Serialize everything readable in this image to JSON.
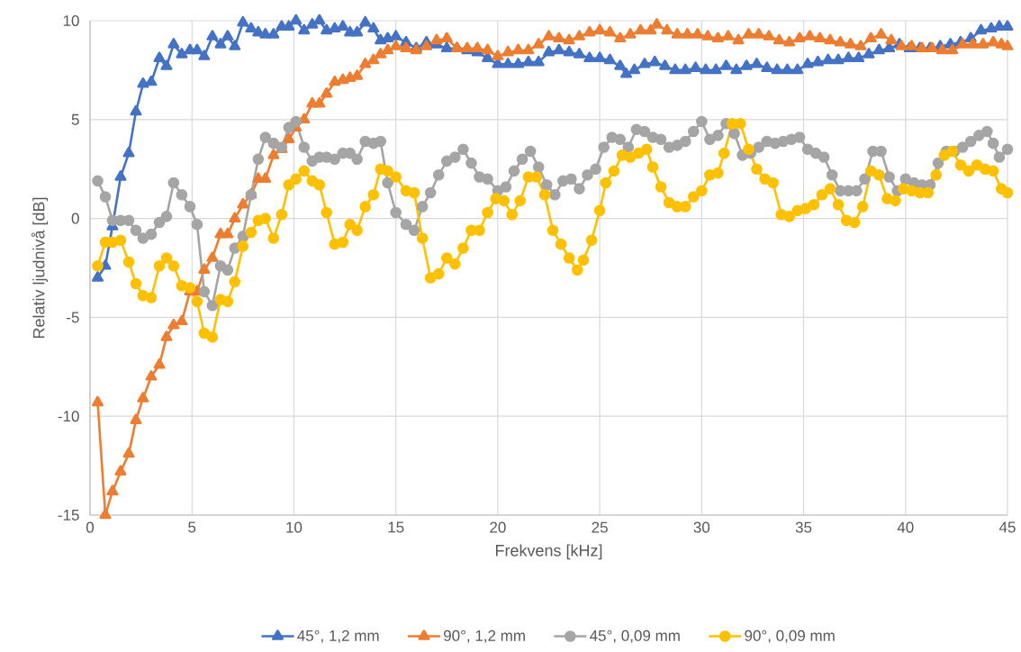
{
  "chart_data": {
    "type": "line",
    "xlabel": "Frekvens [kHz]",
    "ylabel": "Relativ ljudnivå [dB]",
    "xlim": [
      0,
      45
    ],
    "ylim": [
      -15,
      10
    ],
    "xticks": [
      0,
      5,
      10,
      15,
      20,
      25,
      30,
      35,
      40,
      45
    ],
    "yticks": [
      -15,
      -10,
      -5,
      0,
      5,
      10
    ],
    "grid": true,
    "legend": "bottom",
    "series": [
      {
        "name": "45°, 1,2 mm",
        "color": "#4472c4",
        "marker": "triangle",
        "x": [
          0.375,
          0.75,
          1.1,
          1.5,
          1.9,
          2.25,
          2.6,
          3.0,
          3.4,
          3.75,
          4.1,
          4.5,
          4.9,
          5.25,
          5.6,
          6.0,
          6.4,
          6.75,
          7.1,
          7.5,
          7.9,
          8.25,
          8.6,
          9.0,
          9.4,
          9.75,
          10.1,
          10.5,
          10.9,
          11.25,
          11.6,
          12,
          12.4,
          12.75,
          13.1,
          13.5,
          13.9,
          14.25,
          14.6,
          15,
          15.5,
          16,
          16.5,
          17,
          17.5,
          18,
          18.5,
          19,
          19.5,
          20,
          20.5,
          21,
          21.5,
          22,
          22.5,
          23,
          23.5,
          24,
          24.5,
          25,
          25.5,
          26,
          26.3,
          26.7,
          27.2,
          27.7,
          28.2,
          28.7,
          29.2,
          29.7,
          30.2,
          30.7,
          31.2,
          31.7,
          32.2,
          32.7,
          33.2,
          33.7,
          34.2,
          34.7,
          35.2,
          35.7,
          36.2,
          36.7,
          37.2,
          37.7,
          38.2,
          38.7,
          39.2,
          39.7,
          40.2,
          40.7,
          41.2,
          41.7,
          42.2,
          42.7,
          43.2,
          43.7,
          44.2,
          44.6,
          45
        ],
        "values": [
          -3.0,
          -2.4,
          -0.4,
          2.1,
          3.3,
          5.4,
          6.8,
          6.9,
          8.1,
          7.7,
          8.8,
          8.3,
          8.5,
          8.5,
          8.2,
          9.2,
          8.8,
          9.2,
          8.7,
          9.9,
          9.6,
          9.4,
          9.3,
          9.3,
          9.7,
          9.7,
          10.0,
          9.5,
          9.8,
          10.0,
          9.5,
          9.6,
          9.7,
          9.4,
          9.4,
          9.9,
          9.6,
          9.0,
          9.1,
          9.2,
          8.9,
          8.6,
          8.9,
          8.8,
          8.6,
          8.6,
          8.5,
          8.4,
          8.1,
          7.8,
          7.8,
          7.8,
          7.9,
          7.9,
          8.4,
          8.5,
          8.4,
          8.3,
          8.1,
          8.1,
          8.0,
          7.7,
          7.3,
          7.5,
          7.8,
          7.9,
          7.7,
          7.5,
          7.5,
          7.6,
          7.5,
          7.5,
          7.7,
          7.5,
          7.7,
          7.8,
          7.6,
          7.5,
          7.5,
          7.5,
          7.8,
          7.9,
          8.0,
          8.0,
          8.1,
          8.1,
          8.3,
          8.5,
          8.6,
          8.8,
          8.6,
          8.6,
          8.6,
          8.7,
          8.8,
          8.9,
          9.1,
          9.5,
          9.6,
          9.7,
          9.7
        ]
      },
      {
        "name": "90°, 1,2 mm",
        "color": "#ed7d31",
        "marker": "triangle",
        "x": [
          0.375,
          0.75,
          1.1,
          1.5,
          1.9,
          2.25,
          2.6,
          3.0,
          3.4,
          3.75,
          4.1,
          4.5,
          4.9,
          5.25,
          5.6,
          6.0,
          6.4,
          6.75,
          7.1,
          7.5,
          7.9,
          8.25,
          8.6,
          9.0,
          9.4,
          9.75,
          10.1,
          10.5,
          10.9,
          11.25,
          11.6,
          12,
          12.4,
          12.75,
          13.1,
          13.5,
          13.9,
          14.25,
          14.6,
          15,
          15.5,
          16,
          16.5,
          17,
          17.5,
          18,
          18.5,
          19,
          19.5,
          20,
          20.5,
          21,
          21.5,
          22,
          22.5,
          23,
          23.5,
          24,
          24.5,
          25,
          25.5,
          26,
          26.5,
          27,
          27.5,
          27.8,
          28.3,
          28.8,
          29.3,
          29.8,
          30.3,
          30.8,
          31.3,
          31.8,
          32.3,
          32.8,
          33.3,
          33.8,
          34.3,
          34.8,
          35.3,
          35.8,
          36.3,
          36.8,
          37.3,
          37.8,
          38.3,
          38.8,
          39.3,
          39.8,
          40.3,
          40.8,
          41.3,
          41.8,
          42.3,
          42.8,
          43.3,
          43.8,
          44.3,
          44.7,
          45
        ],
        "values": [
          -9.3,
          -15.0,
          -13.8,
          -12.8,
          -11.9,
          -10.2,
          -9.1,
          -8.0,
          -7.4,
          -6.0,
          -5.4,
          -5.2,
          -3.7,
          -3.7,
          -2.6,
          -2.0,
          -0.8,
          -0.8,
          0.0,
          0.7,
          1.2,
          2.0,
          2.0,
          3.2,
          3.5,
          4.0,
          4.6,
          5.0,
          5.8,
          5.8,
          6.3,
          6.9,
          7.0,
          7.1,
          7.2,
          7.8,
          8.0,
          8.3,
          8.5,
          8.7,
          8.6,
          8.5,
          8.7,
          9.0,
          9.1,
          8.6,
          8.6,
          8.6,
          8.5,
          8.2,
          8.4,
          8.5,
          8.5,
          8.8,
          9.2,
          9.1,
          9.0,
          9.2,
          9.4,
          9.5,
          9.4,
          9.1,
          9.3,
          9.5,
          9.5,
          9.8,
          9.5,
          9.3,
          9.3,
          9.3,
          9.2,
          9.1,
          9.2,
          9.0,
          9.3,
          9.3,
          9.2,
          9.0,
          8.9,
          9.1,
          9.2,
          9.1,
          9.0,
          8.9,
          8.8,
          8.7,
          9.1,
          9.3,
          9.0,
          8.7,
          8.7,
          8.6,
          8.6,
          8.5,
          8.5,
          8.8,
          8.8,
          8.8,
          8.9,
          8.8,
          8.7
        ]
      },
      {
        "name": "45°, 0,09 mm",
        "color": "#a5a5a5",
        "marker": "circle",
        "x": [
          0.375,
          0.75,
          1.1,
          1.5,
          1.9,
          2.25,
          2.6,
          3.0,
          3.4,
          3.75,
          4.1,
          4.5,
          4.9,
          5.25,
          5.6,
          6.0,
          6.4,
          6.75,
          7.1,
          7.5,
          7.9,
          8.25,
          8.6,
          9.0,
          9.4,
          9.75,
          10.1,
          10.5,
          10.9,
          11.25,
          11.6,
          12,
          12.4,
          12.75,
          13.1,
          13.5,
          13.9,
          14.25,
          14.6,
          15,
          15.5,
          15.9,
          16.3,
          16.7,
          17.1,
          17.5,
          17.9,
          18.3,
          18.7,
          19.1,
          19.5,
          20,
          20.4,
          20.8,
          21.2,
          21.6,
          22,
          22.4,
          22.8,
          23.2,
          23.6,
          24,
          24.4,
          24.8,
          25.2,
          25.6,
          26,
          26.4,
          26.8,
          27.2,
          27.6,
          28,
          28.4,
          28.8,
          29.2,
          29.6,
          30,
          30.4,
          30.8,
          31.2,
          31.6,
          32,
          32.4,
          32.8,
          33.2,
          33.6,
          34,
          34.4,
          34.8,
          35.2,
          35.6,
          36,
          36.4,
          36.8,
          37.2,
          37.6,
          38,
          38.4,
          38.8,
          39.2,
          39.6,
          40,
          40.4,
          40.8,
          41.2,
          41.6,
          42,
          42.4,
          42.8,
          43.2,
          43.6,
          44,
          44.3,
          44.6,
          45
        ],
        "values": [
          1.9,
          1.1,
          -0.1,
          -0.1,
          -0.1,
          -0.6,
          -1.0,
          -0.8,
          -0.2,
          0.1,
          1.8,
          1.2,
          0.6,
          -0.3,
          -3.7,
          -4.4,
          -2.4,
          -2.6,
          -1.5,
          -0.9,
          1.2,
          3.0,
          4.1,
          3.8,
          3.6,
          4.6,
          4.9,
          3.6,
          2.9,
          3.1,
          3.1,
          3.0,
          3.3,
          3.3,
          3.0,
          3.9,
          3.8,
          3.9,
          1.8,
          0.3,
          -0.3,
          -0.6,
          0.6,
          1.3,
          2.2,
          2.9,
          3.1,
          3.5,
          2.8,
          2.1,
          2.0,
          1.4,
          1.6,
          2.4,
          3.0,
          3.4,
          2.6,
          1.7,
          1.2,
          1.9,
          2.0,
          1.5,
          2.2,
          2.5,
          3.6,
          4.1,
          4.0,
          3.6,
          4.5,
          4.4,
          4.1,
          4.0,
          3.6,
          3.7,
          3.9,
          4.4,
          4.9,
          4.0,
          4.2,
          4.8,
          4.3,
          3.2,
          3.3,
          3.6,
          3.9,
          3.8,
          3.9,
          4.0,
          4.1,
          3.5,
          3.3,
          3.1,
          2.2,
          1.4,
          1.4,
          1.4,
          2.0,
          3.4,
          3.4,
          2.1,
          1.4,
          2.0,
          1.8,
          1.7,
          1.7,
          2.8,
          3.4,
          3.4,
          3.6,
          3.9,
          4.2,
          4.4,
          3.8,
          3.1,
          3.5
        ]
      },
      {
        "name": "90°, 0,09 mm",
        "color": "#ffc000",
        "marker": "circle",
        "x": [
          0.375,
          0.75,
          1.1,
          1.5,
          1.9,
          2.25,
          2.6,
          3.0,
          3.4,
          3.75,
          4.1,
          4.5,
          4.9,
          5.25,
          5.6,
          6.0,
          6.4,
          6.75,
          7.1,
          7.5,
          7.9,
          8.25,
          8.6,
          9.0,
          9.4,
          9.75,
          10.1,
          10.5,
          10.9,
          11.25,
          11.6,
          12,
          12.4,
          12.75,
          13.1,
          13.5,
          13.9,
          14.25,
          14.6,
          15,
          15.5,
          15.9,
          16.3,
          16.7,
          17.1,
          17.5,
          17.9,
          18.3,
          18.7,
          19.1,
          19.5,
          19.9,
          20.3,
          20.7,
          21.1,
          21.5,
          21.9,
          22.3,
          22.7,
          23.1,
          23.5,
          23.9,
          24.2,
          24.6,
          25,
          25.3,
          25.7,
          26.1,
          26.5,
          26.9,
          27.3,
          27.6,
          28,
          28.4,
          28.8,
          29.2,
          29.6,
          30,
          30.4,
          30.8,
          31.1,
          31.5,
          31.9,
          32.3,
          32.7,
          33.1,
          33.5,
          33.9,
          34.3,
          34.7,
          35.1,
          35.5,
          35.9,
          36.3,
          36.7,
          37.1,
          37.5,
          37.9,
          38.3,
          38.7,
          39.1,
          39.5,
          39.9,
          40.3,
          40.7,
          41.1,
          41.5,
          41.9,
          42.3,
          42.7,
          43.1,
          43.5,
          43.9,
          44.3,
          44.7,
          45
        ],
        "values": [
          -2.4,
          -1.2,
          -1.2,
          -1.1,
          -2.2,
          -3.3,
          -3.9,
          -4.0,
          -2.4,
          -2.0,
          -2.4,
          -3.4,
          -3.5,
          -4.2,
          -5.8,
          -6.0,
          -4.1,
          -4.2,
          -3.2,
          -1.4,
          -0.7,
          -0.1,
          0.0,
          -1.0,
          0.2,
          1.7,
          2.0,
          2.4,
          1.9,
          1.7,
          0.3,
          -1.3,
          -1.2,
          -0.3,
          -0.6,
          0.6,
          1.2,
          2.5,
          2.4,
          2.1,
          1.4,
          1.3,
          -1.0,
          -3.0,
          -2.8,
          -2.0,
          -2.3,
          -1.5,
          -0.6,
          -0.6,
          0.3,
          1.0,
          0.9,
          0.2,
          0.9,
          2.1,
          2.1,
          1.2,
          -0.6,
          -1.3,
          -2.0,
          -2.6,
          -2.1,
          -1.1,
          0.4,
          1.8,
          2.4,
          3.2,
          3.1,
          3.3,
          3.5,
          2.6,
          1.6,
          0.8,
          0.6,
          0.6,
          1.1,
          1.4,
          2.2,
          2.3,
          3.3,
          4.8,
          4.8,
          3.5,
          2.5,
          2.0,
          1.8,
          0.2,
          0.1,
          0.4,
          0.5,
          0.7,
          1.2,
          1.5,
          0.7,
          -0.1,
          -0.2,
          0.6,
          2.4,
          2.2,
          1.0,
          0.9,
          1.5,
          1.4,
          1.3,
          1.3,
          2.2,
          3.2,
          3.4,
          2.7,
          2.4,
          2.7,
          2.5,
          2.4,
          1.5,
          1.3
        ]
      }
    ]
  }
}
